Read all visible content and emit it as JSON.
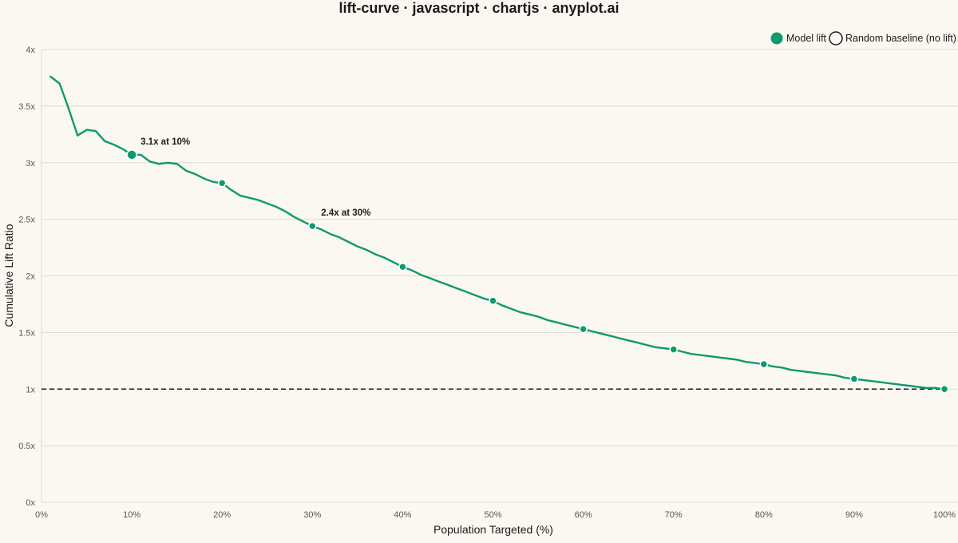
{
  "chart_data": {
    "type": "line",
    "title": "lift-curve · javascript · chartjs · anyplot.ai",
    "xlabel": "Population Targeted (%)",
    "ylabel": "Cumulative Lift Ratio",
    "xlim": [
      0,
      100
    ],
    "ylim": [
      0,
      4
    ],
    "x_ticks": [
      0,
      10,
      20,
      30,
      40,
      50,
      60,
      70,
      80,
      90,
      100
    ],
    "x_tick_labels": [
      "0%",
      "10%",
      "20%",
      "30%",
      "40%",
      "50%",
      "60%",
      "70%",
      "80%",
      "90%",
      "100%"
    ],
    "y_ticks": [
      0,
      0.5,
      1,
      1.5,
      2,
      2.5,
      3,
      3.5,
      4
    ],
    "y_tick_labels": [
      "0x",
      "0.5x",
      "1x",
      "1.5x",
      "2x",
      "2.5x",
      "3x",
      "3.5x",
      "4x"
    ],
    "grid": "horizontal",
    "legend_position": "top-right",
    "colors": {
      "model": "#0E9A6E",
      "baseline": "#1a1a1a",
      "grid": "#DCDAD2",
      "background": "#FAF8F1"
    },
    "series": [
      {
        "name": "Model lift",
        "x": [
          1,
          2,
          3,
          4,
          5,
          6,
          7,
          8,
          9,
          10,
          11,
          12,
          13,
          14,
          15,
          16,
          17,
          18,
          19,
          20,
          21,
          22,
          23,
          24,
          25,
          26,
          27,
          28,
          29,
          30,
          31,
          32,
          33,
          34,
          35,
          36,
          37,
          38,
          39,
          40,
          41,
          42,
          43,
          44,
          45,
          46,
          47,
          48,
          49,
          50,
          51,
          52,
          53,
          54,
          55,
          56,
          57,
          58,
          59,
          60,
          61,
          62,
          63,
          64,
          65,
          66,
          67,
          68,
          69,
          70,
          71,
          72,
          73,
          74,
          75,
          76,
          77,
          78,
          79,
          80,
          81,
          82,
          83,
          84,
          85,
          86,
          87,
          88,
          89,
          90,
          91,
          92,
          93,
          94,
          95,
          96,
          97,
          98,
          99,
          100
        ],
        "y": [
          3.76,
          3.7,
          3.48,
          3.24,
          3.29,
          3.28,
          3.19,
          3.16,
          3.12,
          3.07,
          3.07,
          3.01,
          2.99,
          3.0,
          2.99,
          2.93,
          2.9,
          2.86,
          2.83,
          2.82,
          2.76,
          2.71,
          2.69,
          2.67,
          2.64,
          2.61,
          2.57,
          2.52,
          2.48,
          2.44,
          2.41,
          2.37,
          2.34,
          2.3,
          2.26,
          2.23,
          2.19,
          2.16,
          2.12,
          2.08,
          2.05,
          2.01,
          1.98,
          1.95,
          1.92,
          1.89,
          1.86,
          1.83,
          1.8,
          1.78,
          1.74,
          1.71,
          1.68,
          1.66,
          1.64,
          1.61,
          1.59,
          1.57,
          1.55,
          1.53,
          1.51,
          1.49,
          1.47,
          1.45,
          1.43,
          1.41,
          1.39,
          1.37,
          1.36,
          1.35,
          1.33,
          1.31,
          1.3,
          1.29,
          1.28,
          1.27,
          1.26,
          1.24,
          1.23,
          1.22,
          1.2,
          1.19,
          1.17,
          1.16,
          1.15,
          1.14,
          1.13,
          1.12,
          1.1,
          1.09,
          1.08,
          1.07,
          1.06,
          1.05,
          1.04,
          1.03,
          1.02,
          1.01,
          1.01,
          1.0
        ],
        "marker_x": [
          10,
          20,
          30,
          40,
          50,
          60,
          70,
          80,
          90,
          100
        ]
      },
      {
        "name": "Random baseline (no lift)",
        "x": [
          0,
          100
        ],
        "y": [
          1,
          1
        ]
      }
    ],
    "annotations": [
      {
        "x": 10,
        "y": 3.07,
        "text": "3.1x at 10%"
      },
      {
        "x": 30,
        "y": 2.44,
        "text": "2.4x at 30%"
      }
    ]
  }
}
